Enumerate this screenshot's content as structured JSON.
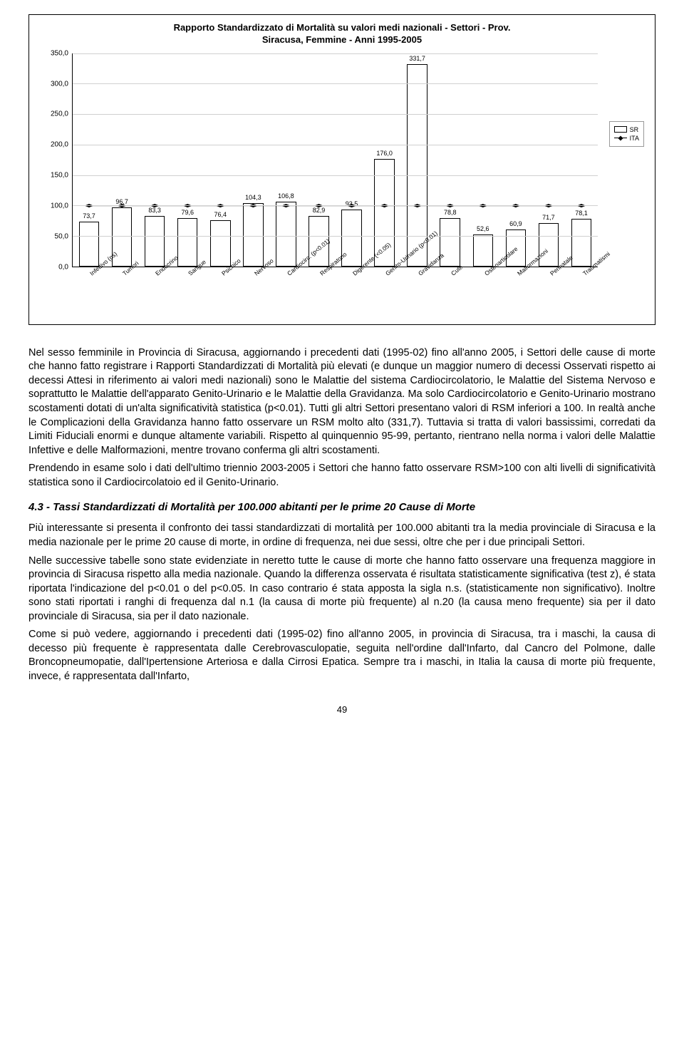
{
  "chart": {
    "type": "bar+line",
    "title_line1": "Rapporto Standardizzato di Mortalità su valori medi nazionali - Settori - Prov.",
    "title_line2": "Siracusa, Femmine - Anni 1995-2005",
    "categories": [
      "Infettivo (ns)",
      "Tumori",
      "Endocrino",
      "Sangue",
      "Psichico",
      "Nervoso",
      "Cardiocirc. (p<0.01)",
      "Respiratorio",
      "Digerente (<0.05)",
      "Genito-Urinario (p<0.01)",
      "Gravidanza",
      "Cute",
      "Osteoarticolare",
      "Malformazioni",
      "Perinatale",
      "Traumatismi"
    ],
    "bar_values": [
      73.7,
      96.7,
      83.3,
      79.6,
      76.4,
      104.3,
      106.8,
      82.9,
      93.5,
      176.0,
      331.7,
      78.8,
      52.6,
      60.9,
      71.7,
      78.1
    ],
    "bar_value_labels": [
      "73,7",
      "96,7",
      "83,3",
      "79,6",
      "76,4",
      "104,3",
      "106,8",
      "82,9",
      "93,5",
      "176,0",
      "331,7",
      "78,8",
      "52,6",
      "60,9",
      "71,7",
      "78,1"
    ],
    "ita_line_y": 100,
    "ylim": [
      0,
      350
    ],
    "ytick_step": 50,
    "ytick_labels": [
      "0,0",
      "50,0",
      "100,0",
      "150,0",
      "200,0",
      "250,0",
      "300,0",
      "350,0"
    ],
    "bar_fill": "#ffffff",
    "bar_border": "#000000",
    "grid_color": "#d0d0d0",
    "background_color": "#ffffff",
    "title_fontsize": 13,
    "axis_fontsize": 10,
    "value_fontsize": 9,
    "legend": {
      "sr": "SR",
      "ita": "ITA"
    }
  },
  "body": {
    "p1": "Nel sesso femminile in Provincia di Siracusa, aggiornando i precedenti dati (1995-02) fino all'anno 2005, i Settori delle cause di morte che hanno fatto registrare i Rapporti Standardizzati di Mortalità più elevati (e dunque un maggior numero di decessi Osservati rispetto ai decessi Attesi in riferimento ai valori medi nazionali) sono le Malattie del sistema Cardiocircolatorio, le Malattie del Sistema Nervoso e soprattutto le Malattie dell'apparato Genito-Urinario e le Malattie della Gravidanza. Ma solo Cardiocircolatorio e Genito-Urinario mostrano scostamenti dotati di un'alta significatività statistica (p<0.01). Tutti gli altri Settori presentano valori di RSM inferiori a 100. In realtà anche le Complicazioni della Gravidanza hanno fatto osservare un RSM molto alto (331,7). Tuttavia si tratta di valori bassissimi, corredati da Limiti Fiduciali enormi e dunque altamente variabili. Rispetto al quinquennio 95-99, pertanto, rientrano nella norma i valori delle Malattie Infettive e delle Malformazioni, mentre trovano conferma gli altri scostamenti.",
    "p2": "Prendendo in esame solo i dati dell'ultimo triennio 2003-2005 i Settori che hanno fatto osservare RSM>100 con alti livelli di significatività statistica sono il Cardiocircolatoio ed il Genito-Urinario.",
    "heading": "4.3 - Tassi Standardizzati di Mortalità per 100.000 abitanti per le prime 20 Cause di Morte",
    "p3": "Più interessante si presenta il confronto dei tassi standardizzati di mortalità per 100.000 abitanti tra la media provinciale di Siracusa e la media nazionale per le prime 20 cause di morte, in ordine di frequenza, nei due sessi, oltre che per i due principali Settori.",
    "p4": "Nelle successive tabelle sono state evidenziate in neretto tutte le cause di morte che hanno fatto osservare una frequenza maggiore in provincia di Siracusa rispetto alla media nazionale. Quando la differenza osservata é risultata statisticamente significativa (test z), é stata riportata l'indicazione del p<0.01 o del p<0.05. In caso contrario é stata apposta la sigla n.s. (statisticamente non significativo). Inoltre sono stati riportati i ranghi di frequenza dal n.1 (la causa di morte più frequente) al n.20 (la causa meno frequente) sia per il dato provinciale di Siracusa, sia per il dato nazionale.",
    "p5": "Come si può vedere, aggiornando i precedenti dati (1995-02) fino all'anno 2005, in provincia di Siracusa, tra i maschi, la causa di decesso più frequente è rappresentata dalle Cerebrovasculopatie, seguita nell'ordine dall'Infarto, dal Cancro del Polmone, dalle Broncopneumopatie, dall'Ipertensione Arteriosa e dalla Cirrosi Epatica. Sempre tra i maschi, in Italia la causa di morte più frequente, invece, é rappresentata dall'Infarto,"
  },
  "page_number": "49"
}
